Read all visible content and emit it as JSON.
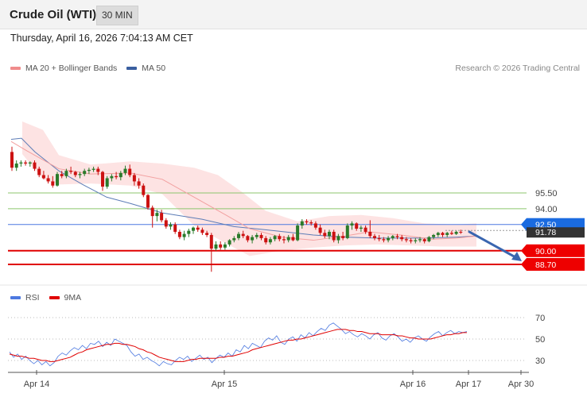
{
  "header": {
    "title": "Crude Oil (WTI)",
    "timeframe": "30 MIN"
  },
  "datetime": "Thursday, April 16, 2026 7:04:13 AM CET",
  "legend_main": [
    {
      "label": "MA 20 + Bollinger Bands",
      "color": "#f08c8c"
    },
    {
      "label": "MA 50",
      "color": "#3a5fa0"
    }
  ],
  "copyright": "Research © 2026 Trading Central",
  "legend_rsi": [
    {
      "label": "RSI",
      "color": "#4d79e0"
    },
    {
      "label": "9MA",
      "color": "#e00000"
    }
  ],
  "colors": {
    "up": "#2a7a2a",
    "down": "#cc1111",
    "support": "#e00000",
    "resistance": "#8cc66e",
    "pivot": "#4d79e0",
    "arrow": "#3a66b0",
    "bollinger": "#fde3e3",
    "ma20": "#f2a0a0",
    "ma50": "#5c7cb6"
  },
  "chart_data": [
    {
      "type": "candlestick",
      "title": "Crude Oil (WTI)",
      "x_ticks": [
        "Apr 14",
        "Apr 15",
        "Apr 16",
        "Apr 17",
        "Apr 30"
      ],
      "ylim": [
        85,
        104
      ],
      "levels": [
        {
          "value": 95.5,
          "label": "95.50",
          "kind": "resistance"
        },
        {
          "value": 94.0,
          "label": "94.00",
          "kind": "resistance"
        },
        {
          "value": 92.5,
          "label": "92.50",
          "kind": "pivot"
        },
        {
          "value": 90.0,
          "label": "90.00",
          "kind": "support"
        },
        {
          "value": 88.7,
          "label": "88.70",
          "kind": "support"
        }
      ],
      "last_price": {
        "value": 91.78,
        "label": "91.78"
      },
      "forecast_arrow": {
        "from": 91.8,
        "to": 89.0
      },
      "candles": [
        [
          99.4,
          99.9,
          97.6,
          97.9
        ],
        [
          97.9,
          98.6,
          97.6,
          98.3
        ],
        [
          98.3,
          98.6,
          98.0,
          98.4
        ],
        [
          98.4,
          98.6,
          98.1,
          98.3
        ],
        [
          98.3,
          98.5,
          98.0,
          98.4
        ],
        [
          98.4,
          98.6,
          97.6,
          97.8
        ],
        [
          97.8,
          98.0,
          97.0,
          97.2
        ],
        [
          97.2,
          97.6,
          96.8,
          96.9
        ],
        [
          96.9,
          97.2,
          96.4,
          96.6
        ],
        [
          96.6,
          97.1,
          96.0,
          96.2
        ],
        [
          96.2,
          97.5,
          96.1,
          97.3
        ],
        [
          97.3,
          97.6,
          96.9,
          97.1
        ],
        [
          97.1,
          97.8,
          96.9,
          97.6
        ],
        [
          97.6,
          98.0,
          97.3,
          97.5
        ],
        [
          97.5,
          97.6,
          97.0,
          97.2
        ],
        [
          97.2,
          97.5,
          96.9,
          97.3
        ],
        [
          97.3,
          97.8,
          97.1,
          97.6
        ],
        [
          97.6,
          97.9,
          97.3,
          97.7
        ],
        [
          97.7,
          98.0,
          97.5,
          97.8
        ],
        [
          97.8,
          98.0,
          97.2,
          97.5
        ],
        [
          97.5,
          97.6,
          95.7,
          96.1
        ],
        [
          96.1,
          97.1,
          95.9,
          96.9
        ],
        [
          96.9,
          97.3,
          96.6,
          97.1
        ],
        [
          97.1,
          97.5,
          96.8,
          97.0
        ],
        [
          97.0,
          97.6,
          96.7,
          97.4
        ],
        [
          97.4,
          98.1,
          97.2,
          97.8
        ],
        [
          97.8,
          98.2,
          97.0,
          97.2
        ],
        [
          97.2,
          97.4,
          96.2,
          96.6
        ],
        [
          96.6,
          96.9,
          95.9,
          96.2
        ],
        [
          96.2,
          96.4,
          95.1,
          95.3
        ],
        [
          95.3,
          95.4,
          93.9,
          94.1
        ],
        [
          94.1,
          94.3,
          92.2,
          93.3
        ],
        [
          93.3,
          93.9,
          92.8,
          93.6
        ],
        [
          93.6,
          93.9,
          92.7,
          92.9
        ],
        [
          92.9,
          93.1,
          92.1,
          92.3
        ],
        [
          92.3,
          92.7,
          92.0,
          92.5
        ],
        [
          92.5,
          92.7,
          91.6,
          91.8
        ],
        [
          91.8,
          92.0,
          91.1,
          91.3
        ],
        [
          91.3,
          91.9,
          91.0,
          91.6
        ],
        [
          91.6,
          92.1,
          91.3,
          91.9
        ],
        [
          91.9,
          92.3,
          91.6,
          92.2
        ],
        [
          92.2,
          92.4,
          91.8,
          92.0
        ],
        [
          92.0,
          92.2,
          91.5,
          91.7
        ],
        [
          91.7,
          91.9,
          91.3,
          91.5
        ],
        [
          91.5,
          91.7,
          88.0,
          90.2
        ],
        [
          90.2,
          90.9,
          90.0,
          90.6
        ],
        [
          90.6,
          90.9,
          90.1,
          90.3
        ],
        [
          90.3,
          90.8,
          90.1,
          90.6
        ],
        [
          90.6,
          91.1,
          90.4,
          91.0
        ],
        [
          91.0,
          91.4,
          90.8,
          91.2
        ],
        [
          91.2,
          91.8,
          91.0,
          91.6
        ],
        [
          91.6,
          91.9,
          91.2,
          91.4
        ],
        [
          91.4,
          91.5,
          90.8,
          91.0
        ],
        [
          91.0,
          91.5,
          90.7,
          91.3
        ],
        [
          91.3,
          91.7,
          91.1,
          91.5
        ],
        [
          91.5,
          91.7,
          91.0,
          91.2
        ],
        [
          91.2,
          91.4,
          90.6,
          90.8
        ],
        [
          90.8,
          91.3,
          90.6,
          91.1
        ],
        [
          91.1,
          91.5,
          90.9,
          91.4
        ],
        [
          91.4,
          91.6,
          90.9,
          91.1
        ],
        [
          91.1,
          91.4,
          90.7,
          91.0
        ],
        [
          91.0,
          91.5,
          90.8,
          91.3
        ],
        [
          91.3,
          91.6,
          90.9,
          91.0
        ],
        [
          91.0,
          92.6,
          90.9,
          92.4
        ],
        [
          92.4,
          93.0,
          92.1,
          92.8
        ],
        [
          92.8,
          93.0,
          92.5,
          92.7
        ],
        [
          92.7,
          92.9,
          92.4,
          92.6
        ],
        [
          92.6,
          92.8,
          92.0,
          92.2
        ],
        [
          92.2,
          92.5,
          91.5,
          91.7
        ],
        [
          91.7,
          92.0,
          91.2,
          91.4
        ],
        [
          91.4,
          92.0,
          91.1,
          91.8
        ],
        [
          91.8,
          92.0,
          90.8,
          91.0
        ],
        [
          91.0,
          91.6,
          90.7,
          91.4
        ],
        [
          91.4,
          91.8,
          91.0,
          91.2
        ],
        [
          91.2,
          92.6,
          91.1,
          92.4
        ],
        [
          92.4,
          92.8,
          92.0,
          92.6
        ],
        [
          92.6,
          92.7,
          91.9,
          92.1
        ],
        [
          92.1,
          92.4,
          91.8,
          92.2
        ],
        [
          92.2,
          92.4,
          91.6,
          91.8
        ],
        [
          91.8,
          92.9,
          91.2,
          91.4
        ],
        [
          91.4,
          91.6,
          91.0,
          91.2
        ],
        [
          91.2,
          91.5,
          90.9,
          91.1
        ],
        [
          91.1,
          91.3,
          90.8,
          91.0
        ],
        [
          91.0,
          91.4,
          90.8,
          91.2
        ],
        [
          91.2,
          91.5,
          91.0,
          91.4
        ],
        [
          91.4,
          91.6,
          91.1,
          91.3
        ],
        [
          91.3,
          91.5,
          90.9,
          91.1
        ],
        [
          91.1,
          91.3,
          90.8,
          91.0
        ],
        [
          91.0,
          91.2,
          90.7,
          90.9
        ],
        [
          90.9,
          91.2,
          90.7,
          91.0
        ],
        [
          91.0,
          91.3,
          90.8,
          91.1
        ],
        [
          91.1,
          91.2,
          90.7,
          90.9
        ],
        [
          90.9,
          91.4,
          90.8,
          91.3
        ],
        [
          91.3,
          91.6,
          91.1,
          91.5
        ],
        [
          91.5,
          91.8,
          91.3,
          91.7
        ],
        [
          91.7,
          91.8,
          91.3,
          91.5
        ],
        [
          91.5,
          91.8,
          91.3,
          91.7
        ],
        [
          91.7,
          91.9,
          91.5,
          91.6
        ],
        [
          91.6,
          91.9,
          91.5,
          91.8
        ],
        [
          91.8,
          92.0,
          91.6,
          91.78
        ]
      ],
      "ma50": [
        [
          0,
          100.6
        ],
        [
          13,
          100.7
        ],
        [
          30,
          99.4
        ],
        [
          60,
          97.6
        ],
        [
          90,
          96.3
        ],
        [
          120,
          95.1
        ],
        [
          150,
          94.5
        ],
        [
          190,
          93.6
        ],
        [
          240,
          93.0
        ],
        [
          280,
          92.3
        ],
        [
          320,
          92.0
        ],
        [
          380,
          91.5
        ],
        [
          420,
          91.3
        ],
        [
          460,
          91.2
        ],
        [
          520,
          91.2
        ],
        [
          560,
          91.3
        ],
        [
          585,
          91.4
        ]
      ],
      "ma20": [
        [
          0,
          100.4
        ],
        [
          20,
          99.5
        ],
        [
          60,
          97.8
        ],
        [
          100,
          97.3
        ],
        [
          150,
          97.4
        ],
        [
          190,
          96.8
        ],
        [
          230,
          95.1
        ],
        [
          270,
          93.4
        ],
        [
          300,
          92.1
        ],
        [
          340,
          91.3
        ],
        [
          380,
          91.0
        ],
        [
          420,
          91.4
        ],
        [
          450,
          91.8
        ],
        [
          490,
          91.5
        ],
        [
          530,
          91.1
        ],
        [
          560,
          91.2
        ],
        [
          585,
          91.4
        ]
      ],
      "boll_upper": [
        [
          14,
          102.3
        ],
        [
          40,
          101.5
        ],
        [
          60,
          99.1
        ],
        [
          100,
          98.2
        ],
        [
          150,
          98.5
        ],
        [
          190,
          98.3
        ],
        [
          230,
          97.9
        ],
        [
          260,
          97.2
        ],
        [
          290,
          95.6
        ],
        [
          320,
          93.8
        ],
        [
          360,
          92.8
        ],
        [
          400,
          93.3
        ],
        [
          440,
          93.4
        ],
        [
          480,
          93.1
        ],
        [
          520,
          92.6
        ],
        [
          560,
          92.5
        ],
        [
          585,
          92.6
        ]
      ],
      "boll_lower": [
        [
          14,
          99.2
        ],
        [
          40,
          96.8
        ],
        [
          60,
          96.3
        ],
        [
          100,
          96.4
        ],
        [
          150,
          96.2
        ],
        [
          190,
          95.4
        ],
        [
          230,
          92.4
        ],
        [
          270,
          90.7
        ],
        [
          300,
          89.5
        ],
        [
          340,
          90.0
        ],
        [
          380,
          90.3
        ],
        [
          420,
          90.5
        ],
        [
          460,
          90.6
        ],
        [
          500,
          90.5
        ],
        [
          540,
          90.4
        ],
        [
          585,
          90.4
        ]
      ]
    },
    {
      "type": "line",
      "title": "RSI",
      "ylim": [
        20,
        80
      ],
      "y_ticks": [
        30,
        50,
        70
      ],
      "series": [
        {
          "name": "RSI",
          "values": [
            38,
            33,
            36,
            31,
            34,
            30,
            27,
            30,
            26,
            29,
            25,
            28,
            34,
            37,
            35,
            39,
            42,
            40,
            44,
            41,
            46,
            45,
            48,
            43,
            47,
            44,
            50,
            48,
            46,
            44,
            38,
            34,
            36,
            31,
            33,
            30,
            28,
            25,
            29,
            27,
            26,
            30,
            33,
            31,
            34,
            29,
            32,
            35,
            31,
            33,
            28,
            32,
            35,
            33,
            37,
            34,
            40,
            38,
            44,
            41,
            46,
            44,
            42,
            48,
            51,
            49,
            53,
            47,
            45,
            50,
            52,
            48,
            54,
            51,
            56,
            53,
            57,
            60,
            58,
            63,
            65,
            62,
            59,
            55,
            57,
            54,
            52,
            55,
            53,
            50,
            54,
            56,
            51,
            49,
            53,
            55,
            52,
            48,
            50,
            47,
            51,
            53,
            50,
            48,
            52,
            55,
            57,
            53,
            56,
            58,
            55,
            57,
            56,
            57
          ]
        },
        {
          "name": "9MA",
          "values": [
            36,
            35,
            34,
            34,
            33,
            32,
            32,
            31,
            30,
            30,
            29,
            29,
            30,
            31,
            32,
            33,
            35,
            37,
            38,
            40,
            41,
            42,
            43,
            44,
            45,
            45,
            46,
            46,
            45,
            45,
            44,
            43,
            41,
            40,
            38,
            37,
            35,
            33,
            32,
            31,
            30,
            29,
            29,
            29,
            30,
            31,
            31,
            32,
            32,
            32,
            32,
            32,
            33,
            33,
            34,
            34,
            35,
            36,
            37,
            38,
            40,
            41,
            42,
            43,
            44,
            45,
            46,
            47,
            48,
            49,
            49,
            50,
            50,
            51,
            52,
            53,
            54,
            55,
            56,
            57,
            58,
            59,
            59,
            59,
            58,
            58,
            57,
            57,
            56,
            55,
            55,
            55,
            54,
            54,
            54,
            54,
            53,
            53,
            52,
            51,
            51,
            50,
            50,
            50,
            50,
            51,
            52,
            53,
            54,
            54,
            55,
            55,
            56,
            56
          ]
        }
      ]
    }
  ]
}
